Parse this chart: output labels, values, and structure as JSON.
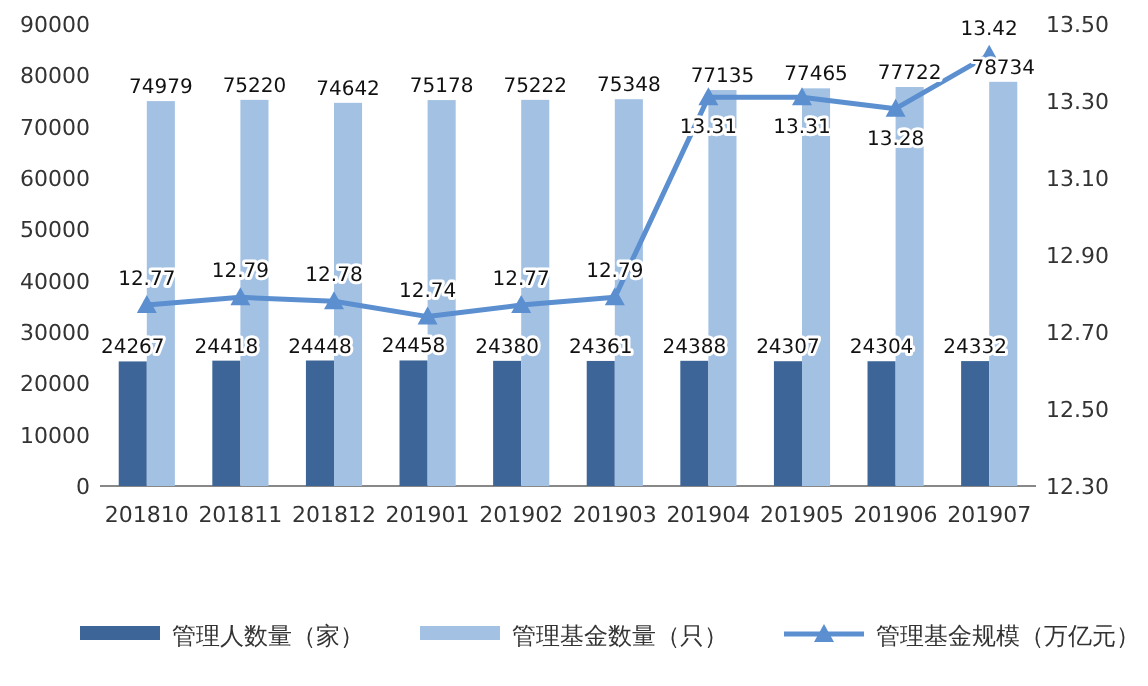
{
  "chart_data": {
    "type": "bar",
    "categories": [
      "201810",
      "201811",
      "201812",
      "201901",
      "201902",
      "201903",
      "201904",
      "201905",
      "201906",
      "201907"
    ],
    "series": [
      {
        "name": "管理人数量（家）",
        "color": "#3d6598",
        "values": [
          24267,
          24418,
          24448,
          24458,
          24380,
          24361,
          24388,
          24307,
          24304,
          24332
        ]
      },
      {
        "name": "管理基金数量（只）",
        "color": "#a3c1e3",
        "values": [
          74979,
          75220,
          74642,
          75178,
          75222,
          75348,
          77135,
          77465,
          77722,
          78734
        ]
      },
      {
        "name": "管理基金规模（万亿元）",
        "type": "line",
        "axis": "y2",
        "color": "#5b8fd0",
        "marker": "triangle",
        "values": [
          12.77,
          12.79,
          12.78,
          12.74,
          12.77,
          12.79,
          13.31,
          13.31,
          13.28,
          13.42
        ]
      }
    ],
    "ylim": [
      0,
      90000
    ],
    "yticks": [
      0,
      10000,
      20000,
      30000,
      40000,
      50000,
      60000,
      70000,
      80000,
      90000
    ],
    "y2lim": [
      12.3,
      13.5
    ],
    "y2ticks": [
      {
        "value": 12.3,
        "label": "12.30"
      },
      {
        "value": 12.5,
        "label": "12.50"
      },
      {
        "value": 12.7,
        "label": "12.70"
      },
      {
        "value": 12.9,
        "label": "12.90"
      },
      {
        "value": 13.1,
        "label": "13.10"
      },
      {
        "value": 13.3,
        "label": "13.30"
      },
      {
        "value": 13.5,
        "label": "13.50"
      }
    ],
    "data_labels": true,
    "legend": "bottom",
    "grid": false
  }
}
